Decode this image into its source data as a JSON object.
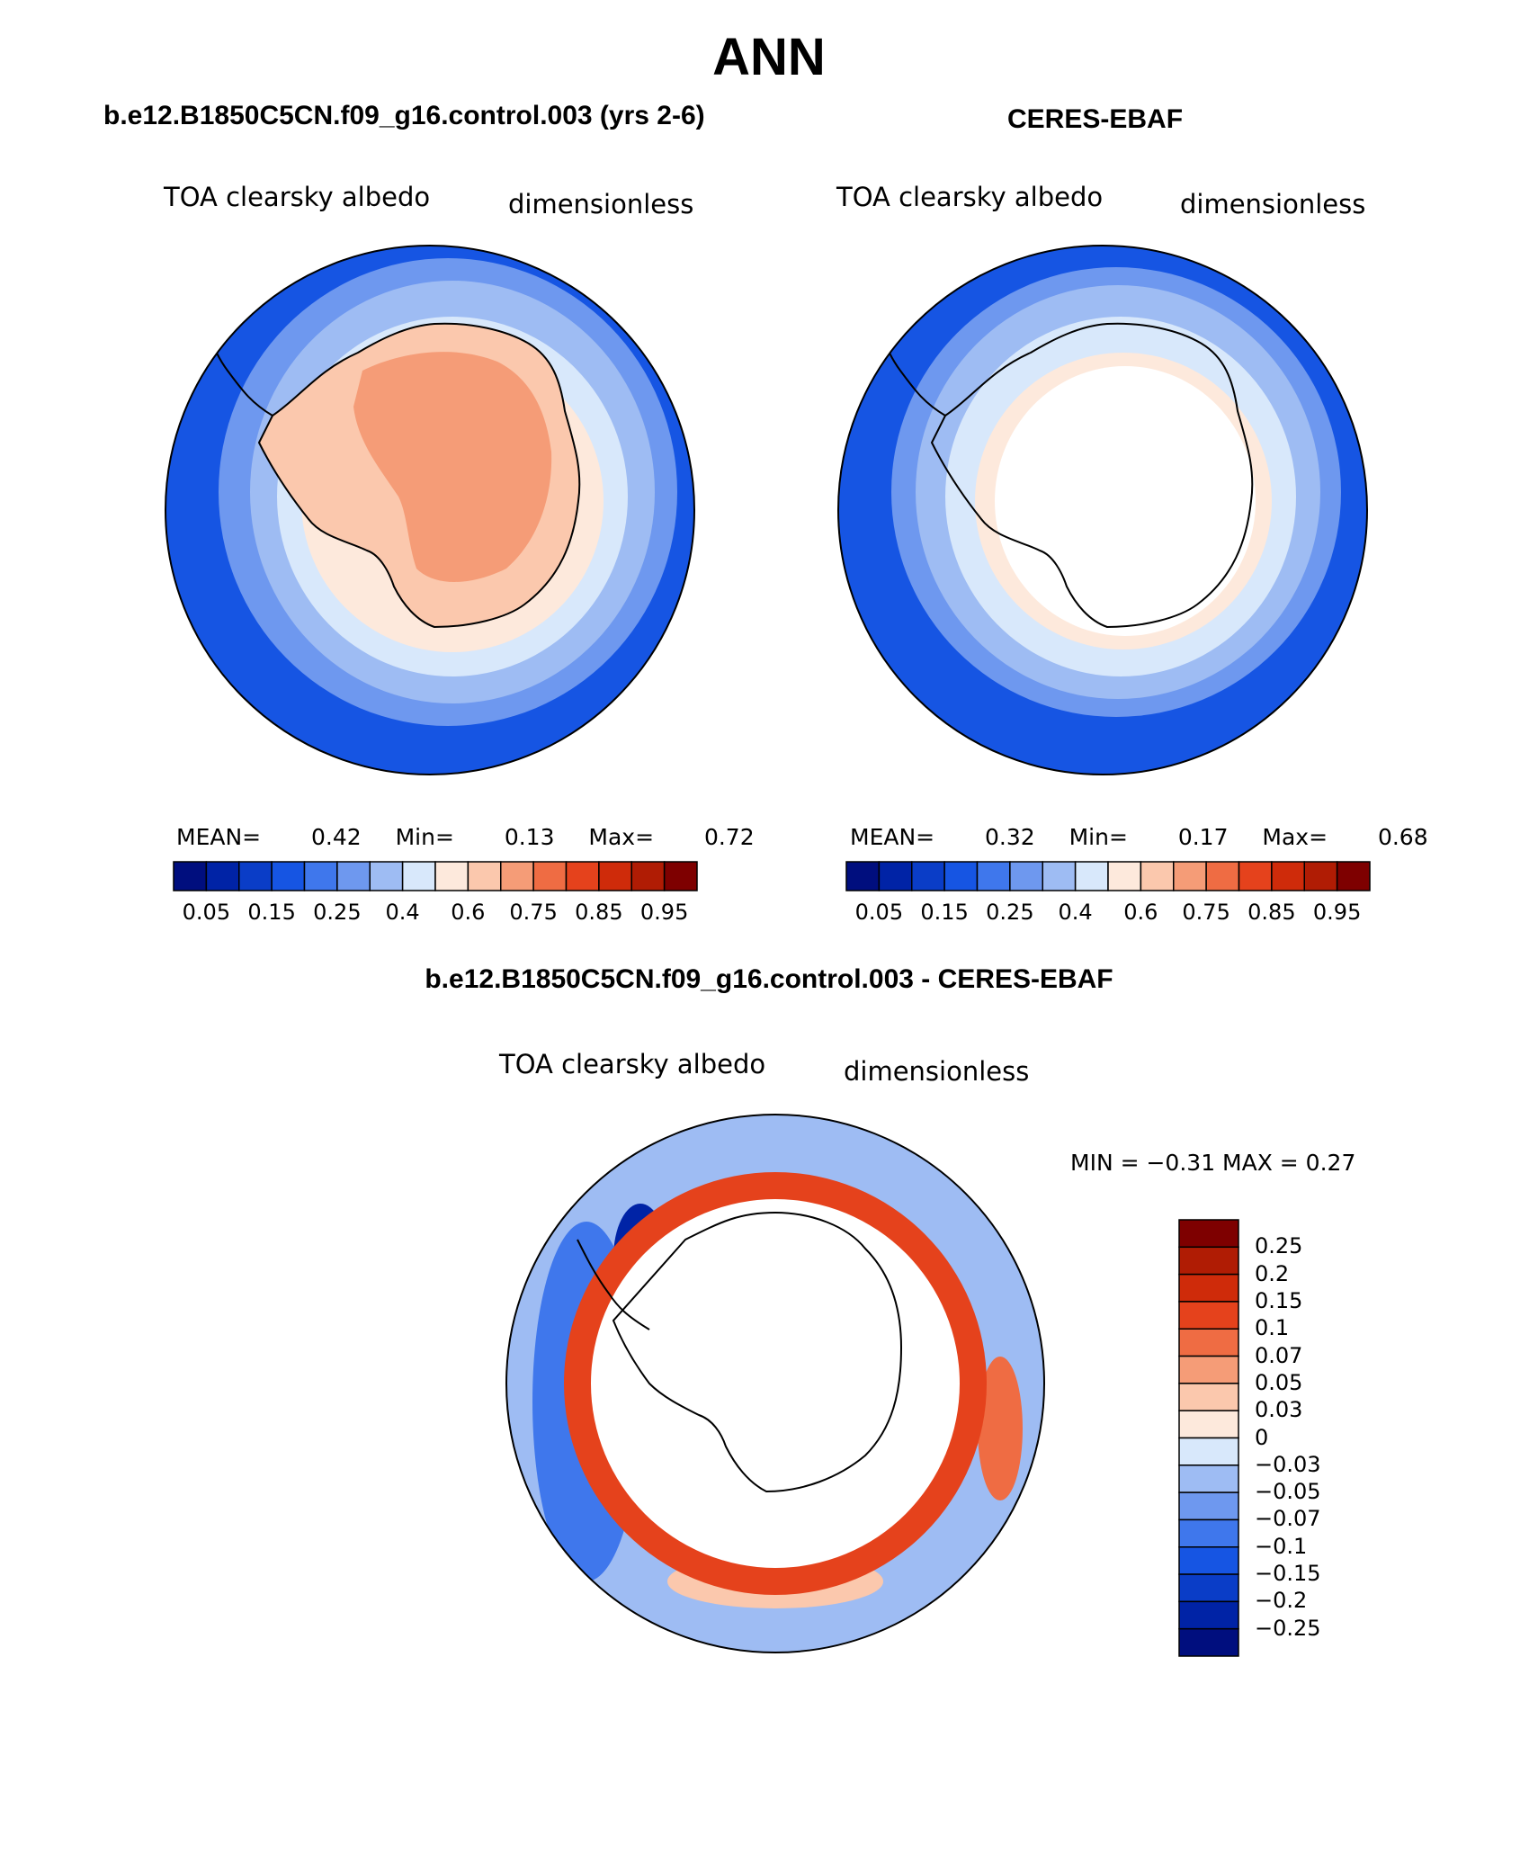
{
  "title": "ANN",
  "colors": {
    "scale": [
      "#000e7e",
      "#0023a6",
      "#0a3dc7",
      "#1655e3",
      "#3f77ec",
      "#6e98ef",
      "#9ebcf3",
      "#d8e8fb",
      "#fde9dc",
      "#fbc8ad",
      "#f59c77",
      "#ef6c43",
      "#e5421c",
      "#cf2b0a",
      "#b01c04",
      "#7e0000"
    ],
    "ocean_deep": "#1655e3",
    "ocean_mid": "#6e98ef",
    "ice_light": "#d8e8fb",
    "land_peach": "#fbc8ad",
    "land_core": "#f59c77",
    "diff_red": "#e5421c"
  },
  "panels": {
    "model": {
      "heading": "b.e12.B1850C5CN.f09_g16.control.003 (yrs 2-6)",
      "variable": "TOA clearsky albedo",
      "units": "dimensionless",
      "mean_label": "MEAN=",
      "mean": "0.42",
      "min_label": "Min=",
      "min": "0.13",
      "max_label": "Max=",
      "max": "0.72"
    },
    "obs": {
      "heading": "CERES-EBAF",
      "variable": "TOA clearsky albedo",
      "units": "dimensionless",
      "mean_label": "MEAN=",
      "mean": "0.32",
      "min_label": "Min=",
      "min": "0.17",
      "max_label": "Max=",
      "max": "0.68"
    },
    "diff": {
      "heading": "b.e12.B1850C5CN.f09_g16.control.003 - CERES-EBAF",
      "variable": "TOA clearsky albedo",
      "units": "dimensionless",
      "minmax_text": "MIN =   −0.31  MAX =     0.27"
    }
  },
  "chart_data": [
    {
      "type": "heatmap",
      "projection": "south-polar-stereographic",
      "title": "b.e12.B1850C5CN.f09_g16.control.003 (yrs 2-6)",
      "variable": "TOA clearsky albedo",
      "units": "dimensionless",
      "mean": 0.42,
      "min": 0.13,
      "max": 0.72,
      "colorbar_levels": [
        0.05,
        0.1,
        0.15,
        0.2,
        0.25,
        0.3,
        0.4,
        0.5,
        0.6,
        0.65,
        0.75,
        0.8,
        0.85,
        0.9,
        0.95
      ],
      "colorbar_tick_labels": [
        "0.05",
        "0.15",
        "0.25",
        "0.4",
        "0.6",
        "0.75",
        "0.85",
        "0.95"
      ]
    },
    {
      "type": "heatmap",
      "projection": "south-polar-stereographic",
      "title": "CERES-EBAF",
      "variable": "TOA clearsky albedo",
      "units": "dimensionless",
      "mean": 0.32,
      "min": 0.17,
      "max": 0.68,
      "colorbar_levels": [
        0.05,
        0.1,
        0.15,
        0.2,
        0.25,
        0.3,
        0.4,
        0.5,
        0.6,
        0.65,
        0.75,
        0.8,
        0.85,
        0.9,
        0.95
      ],
      "colorbar_tick_labels": [
        "0.05",
        "0.15",
        "0.25",
        "0.4",
        "0.6",
        "0.75",
        "0.85",
        "0.95"
      ]
    },
    {
      "type": "heatmap",
      "projection": "south-polar-stereographic",
      "title": "b.e12.B1850C5CN.f09_g16.control.003 - CERES-EBAF",
      "variable": "TOA clearsky albedo",
      "units": "dimensionless",
      "min": -0.31,
      "max": 0.27,
      "colorbar_tick_labels": [
        "0.25",
        "0.2",
        "0.15",
        "0.1",
        "0.07",
        "0.05",
        "0.03",
        "0",
        "−0.03",
        "−0.05",
        "−0.07",
        "−0.1",
        "−0.15",
        "−0.2",
        "−0.25"
      ]
    }
  ]
}
